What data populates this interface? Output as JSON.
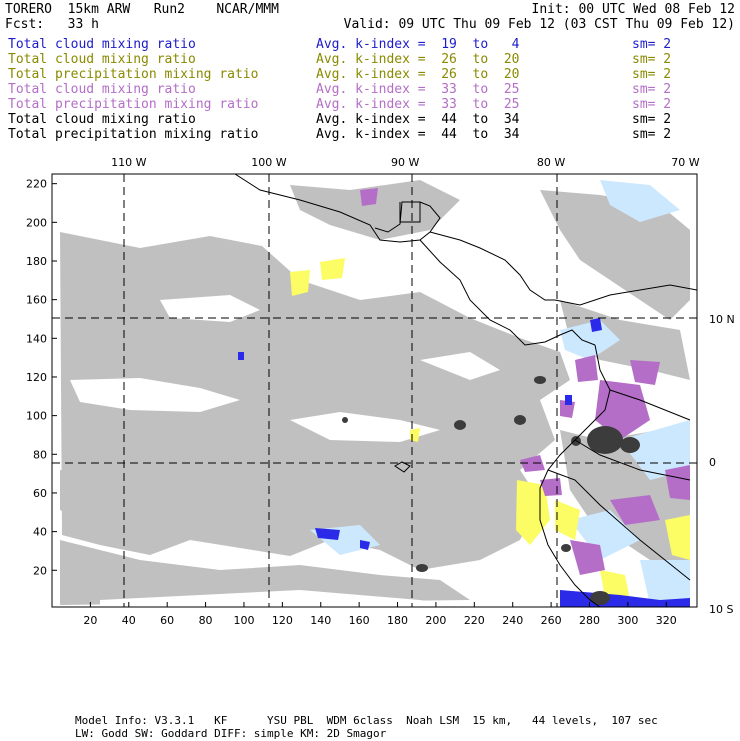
{
  "header": {
    "model": "TORERO  15km ARW   Run2    NCAR/MMM",
    "init": "Init: 00 UTC Wed 08 Feb 12",
    "fcst": "Fcst:   33 h",
    "valid": "Valid: 09 UTC Thu 09 Feb 12 (03 CST Thu 09 Feb 12)"
  },
  "legend": [
    {
      "name": "Total cloud mixing ratio",
      "avg": "Avg. k-index =  19  to   4",
      "sm": "sm= 2",
      "color": "#1c1ccc"
    },
    {
      "name": "Total cloud mixing ratio",
      "avg": "Avg. k-index =  26  to  20",
      "sm": "sm= 2",
      "color": "#8a8a00"
    },
    {
      "name": "Total precipitation mixing ratio",
      "avg": "Avg. k-index =  26  to  20",
      "sm": "sm= 2",
      "color": "#8a8a00"
    },
    {
      "name": "Total cloud mixing ratio",
      "avg": "Avg. k-index =  33  to  25",
      "sm": "sm= 2",
      "color": "#b46ec8"
    },
    {
      "name": "Total precipitation mixing ratio",
      "avg": "Avg. k-index =  33  to  25",
      "sm": "sm= 2",
      "color": "#b46ec8"
    },
    {
      "name": "Total cloud mixing ratio",
      "avg": "Avg. k-index =  44  to  34",
      "sm": "sm= 2",
      "color": "#000000"
    },
    {
      "name": "Total precipitation mixing ratio",
      "avg": "Avg. k-index =  44  to  34",
      "sm": "sm= 2",
      "color": "#000000"
    }
  ],
  "footer": {
    "line1": "Model Info: V3.3.1   KF      YSU PBL  WDM 6class  Noah LSM  15 km,   44 levels,  107 sec",
    "line2": "LW: Godd SW: Goddard DIFF: simple KM: 2D Smagor"
  },
  "chart_data": {
    "type": "heatmap",
    "x_ticks": [
      20,
      40,
      60,
      80,
      100,
      120,
      140,
      160,
      180,
      200,
      220,
      240,
      260,
      280,
      300,
      320
    ],
    "y_ticks": [
      20,
      40,
      60,
      80,
      100,
      120,
      140,
      160,
      180,
      200,
      220
    ],
    "xlim": [
      0,
      336
    ],
    "ylim": [
      1,
      225
    ],
    "lon_labels": [
      "110 W",
      "100 W",
      "90 W",
      "80 W",
      "70 W"
    ],
    "lon_grid_x": [
      40,
      113,
      184,
      260,
      330
    ],
    "lat_labels": [
      "10 N",
      "0",
      "10 S"
    ],
    "lat_grid_y": [
      150,
      76,
      0
    ],
    "grid": "dashed",
    "colors": {
      "cloud_light": "#c0c0c0",
      "cloud_ice": "#cce8ff",
      "blue": "#2a2ae8",
      "yellow": "#fcfc64",
      "purple": "#b46ec8",
      "dark": "#3c3c3c",
      "coast": "#000000"
    }
  }
}
